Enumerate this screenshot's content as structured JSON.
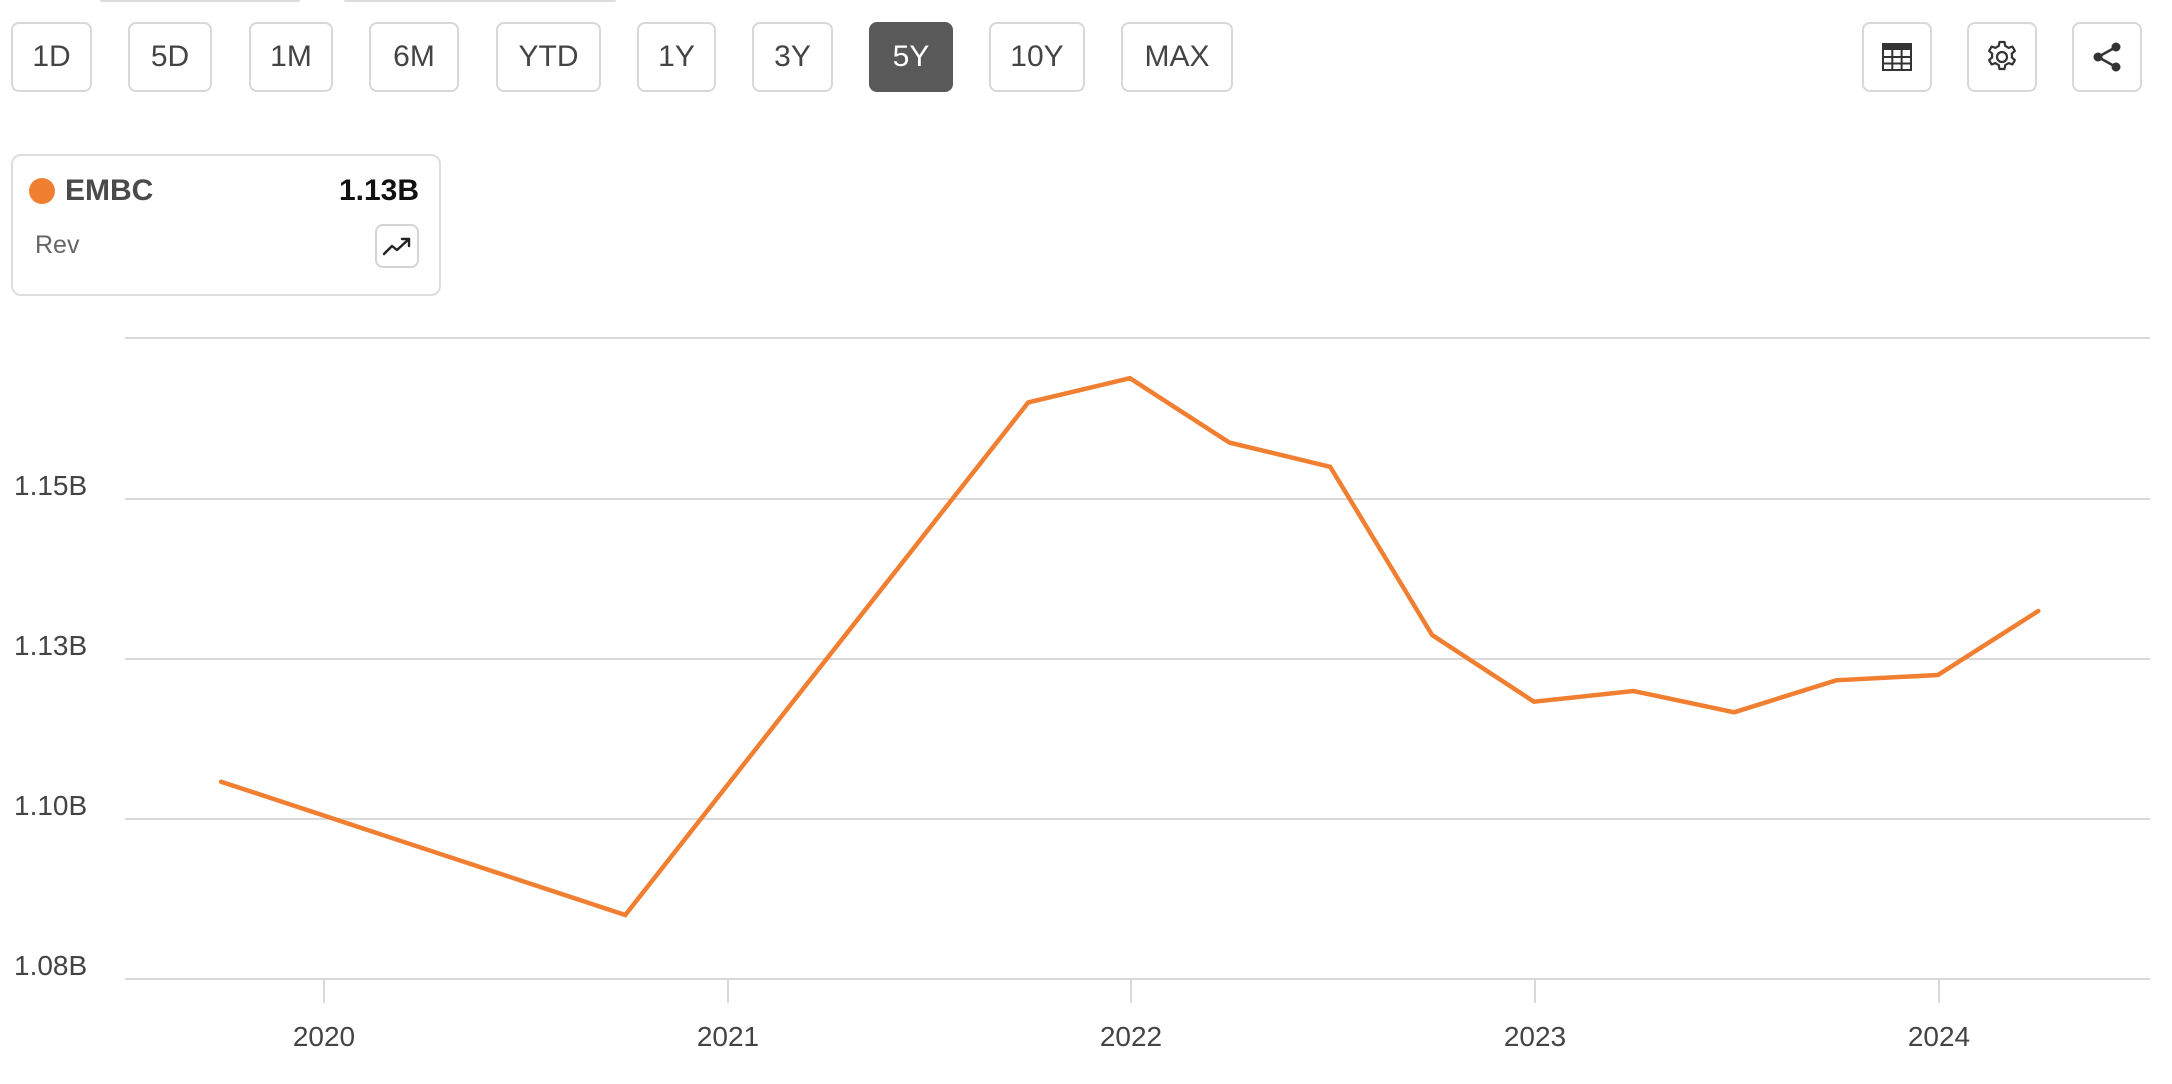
{
  "toolbar": {
    "ranges": [
      {
        "label": "1D"
      },
      {
        "label": "5D"
      },
      {
        "label": "1M"
      },
      {
        "label": "6M"
      },
      {
        "label": "YTD"
      },
      {
        "label": "1Y"
      },
      {
        "label": "3Y"
      },
      {
        "label": "5Y"
      },
      {
        "label": "10Y"
      },
      {
        "label": "MAX"
      }
    ],
    "active_range": "5Y",
    "tools": [
      {
        "icon": "table-icon"
      },
      {
        "icon": "gear-icon"
      },
      {
        "icon": "share-icon"
      }
    ]
  },
  "legend": {
    "ticker": "EMBC",
    "value": "1.13B",
    "metric": "Rev",
    "trend_icon": "trend-up-icon"
  },
  "colors": {
    "series": "#F07F32",
    "grid": "#d9d9d9",
    "active_button": "#595959"
  },
  "chart_data": {
    "type": "line",
    "title": "",
    "xlabel": "",
    "ylabel": "",
    "x_ticks": [
      "2020",
      "2021",
      "2022",
      "2023",
      "2024"
    ],
    "y_ticks": [
      "1.08B",
      "1.10B",
      "1.13B",
      "1.15B"
    ],
    "y_tick_values": [
      1.08,
      1.1,
      1.13,
      1.15
    ],
    "x_range": [
      "2019-07-01",
      "2024-12-31"
    ],
    "ylim": [
      1.08,
      1.17
    ],
    "grid": true,
    "legend_position": "top-left",
    "series": [
      {
        "name": "EMBC",
        "color": "#F07F32",
        "x": [
          "2019-09-30",
          "2020-09-30",
          "2021-09-30",
          "2021-12-31",
          "2022-03-31",
          "2022-06-30",
          "2022-09-30",
          "2022-12-31",
          "2023-03-31",
          "2023-06-30",
          "2023-09-30",
          "2023-12-31",
          "2024-03-31"
        ],
        "values": [
          1.107,
          1.088,
          1.162,
          1.165,
          1.157,
          1.154,
          1.133,
          1.122,
          1.124,
          1.12,
          1.126,
          1.127,
          1.136
        ]
      }
    ]
  }
}
